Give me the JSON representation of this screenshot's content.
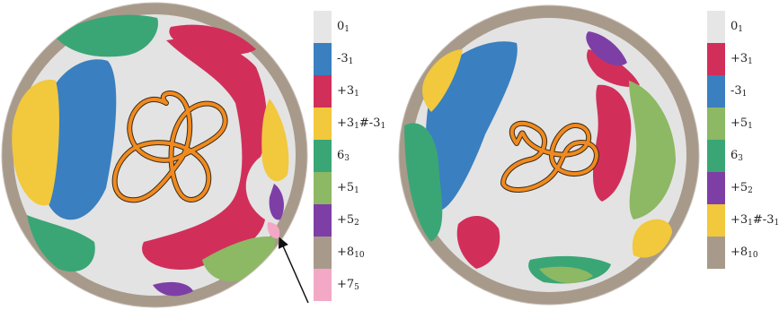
{
  "panels": [
    {
      "id": "left",
      "legend": [
        {
          "base": "0",
          "sub": "1",
          "color": "#e6e6e6"
        },
        {
          "base": "-3",
          "sub": "1",
          "color": "#3a7fc0"
        },
        {
          "base": "+3",
          "sub": "1",
          "color": "#d12f5a"
        },
        {
          "base": "+3",
          "sub": "1",
          "tail": "#-3",
          "tailsub": "1",
          "color": "#f2c83c"
        },
        {
          "base": "6",
          "sub": "3",
          "color": "#3aa675"
        },
        {
          "base": "+5",
          "sub": "1",
          "color": "#8db864"
        },
        {
          "base": "+5",
          "sub": "2",
          "color": "#7d3fa6"
        },
        {
          "base": "+8",
          "sub": "10",
          "color": "#a89a8a"
        },
        {
          "base": "+7",
          "sub": "5",
          "color": "#f3a8c6"
        }
      ],
      "regions": [
        {
          "knot": "-3_1",
          "color": "#3a7fc0"
        },
        {
          "knot": "+3_1",
          "color": "#d12f5a"
        },
        {
          "knot": "+3_1#-3_1",
          "color": "#f2c83c"
        },
        {
          "knot": "6_3",
          "color": "#3aa675"
        },
        {
          "knot": "+5_1",
          "color": "#8db864"
        },
        {
          "knot": "+5_2",
          "color": "#7d3fa6"
        },
        {
          "knot": "+8_10",
          "color": "#a89a8a"
        },
        {
          "knot": "+7_5",
          "color": "#f3a8c6"
        }
      ],
      "arrow_target": "+7_5"
    },
    {
      "id": "right",
      "legend": [
        {
          "base": "0",
          "sub": "1",
          "color": "#e6e6e6"
        },
        {
          "base": "+3",
          "sub": "1",
          "color": "#d12f5a"
        },
        {
          "base": "-3",
          "sub": "1",
          "color": "#3a7fc0"
        },
        {
          "base": "+5",
          "sub": "1",
          "color": "#8db864"
        },
        {
          "base": "6",
          "sub": "3",
          "color": "#3aa675"
        },
        {
          "base": "+5",
          "sub": "2",
          "color": "#7d3fa6"
        },
        {
          "base": "+3",
          "sub": "1",
          "tail": "#-3",
          "tailsub": "1",
          "color": "#f2c83c"
        },
        {
          "base": "+8",
          "sub": "10",
          "color": "#a89a8a"
        }
      ]
    }
  ],
  "colors": {
    "background": "#e3e3e3",
    "knot": "#f08a1e",
    "knot_shadow": "#3a2a1a",
    "arrow": "#111111"
  }
}
